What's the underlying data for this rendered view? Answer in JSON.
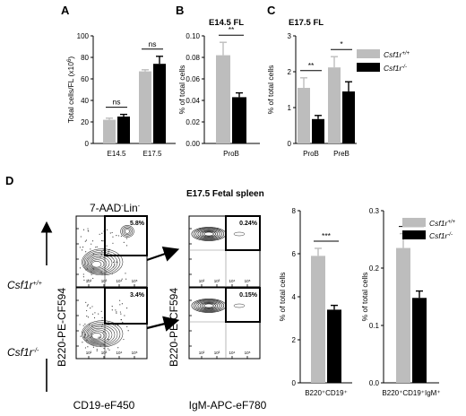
{
  "panel_letters": {
    "a": "A",
    "b": "B",
    "c": "C",
    "d": "D"
  },
  "colors": {
    "wt": "#bdbdbd",
    "ko": "#000000"
  },
  "legend": {
    "wt": "Csf1r",
    "wt_sup": "+/+",
    "ko": "Csf1r",
    "ko_sup": "-/-"
  },
  "chart_data": [
    {
      "type": "bar",
      "panel": "A",
      "title": "",
      "ylabel": "Total cells/FL (x10",
      "ylabel_sup": "6",
      "ylabel_end": ")",
      "ylim": [
        0,
        100
      ],
      "yticks": [
        "0",
        "20",
        "40",
        "60",
        "80",
        "100"
      ],
      "categories": [
        "E14.5",
        "E17.5"
      ],
      "series": [
        {
          "key": "wt",
          "values": [
            22,
            67
          ],
          "errors": [
            1.5,
            1.5
          ]
        },
        {
          "key": "ko",
          "values": [
            25,
            74
          ],
          "errors": [
            2,
            7
          ]
        }
      ],
      "annotations": [
        "ns",
        "ns"
      ]
    },
    {
      "type": "bar",
      "panel": "B",
      "title": "E14.5 FL",
      "ylabel": "% of total cells",
      "ylim": [
        0,
        0.1
      ],
      "yticks": [
        "0.00",
        "0.02",
        "0.04",
        "0.06",
        "0.08",
        "0.10"
      ],
      "categories": [
        "ProB"
      ],
      "series": [
        {
          "key": "wt",
          "values": [
            0.082
          ],
          "errors": [
            0.012
          ]
        },
        {
          "key": "ko",
          "values": [
            0.043
          ],
          "errors": [
            0.004
          ]
        }
      ],
      "annotations": [
        "**"
      ]
    },
    {
      "type": "bar",
      "panel": "C",
      "title": "E17.5 FL",
      "ylabel": "% of total cells",
      "ylim": [
        0,
        3
      ],
      "yticks": [
        "0",
        "1",
        "2",
        "3"
      ],
      "categories": [
        "ProB",
        "PreB"
      ],
      "series": [
        {
          "key": "wt",
          "values": [
            1.55,
            2.12
          ],
          "errors": [
            0.28,
            0.3
          ]
        },
        {
          "key": "ko",
          "values": [
            0.68,
            1.45
          ],
          "errors": [
            0.1,
            0.27
          ]
        }
      ],
      "annotations": [
        "**",
        "*"
      ]
    },
    {
      "type": "bar",
      "panel": "D1",
      "title": "",
      "ylabel": "% of total cells",
      "ylim": [
        0,
        8
      ],
      "yticks": [
        "0",
        "2",
        "4",
        "6",
        "8"
      ],
      "categories": [
        "B220⁺CD19⁺"
      ],
      "series": [
        {
          "key": "wt",
          "values": [
            5.9
          ],
          "errors": [
            0.35
          ]
        },
        {
          "key": "ko",
          "values": [
            3.4
          ],
          "errors": [
            0.2
          ]
        }
      ],
      "annotations": [
        "***"
      ]
    },
    {
      "type": "bar",
      "panel": "D2",
      "title": "",
      "ylabel": "% of total cells",
      "ylim": [
        0,
        0.3
      ],
      "yticks": [
        "0.0",
        "0.1",
        "0.2",
        "0.3"
      ],
      "categories": [
        "B220⁺CD19⁺IgM⁺"
      ],
      "series": [
        {
          "key": "wt",
          "values": [
            0.235
          ],
          "errors": [
            0.025
          ]
        },
        {
          "key": "ko",
          "values": [
            0.148
          ],
          "errors": [
            0.012
          ]
        }
      ],
      "annotations": [
        "**"
      ]
    }
  ],
  "flow": {
    "title": "E17.5 Fetal spleen",
    "gate_title": "7-AAD",
    "gate_title_sup": "-",
    "gate_title_end": "Lin",
    "gate_title_end_sup": "-",
    "row_labels": [
      {
        "text": "Csf1r",
        "sup": "+/+"
      },
      {
        "text": "Csf1r",
        "sup": "-/-"
      }
    ],
    "left_y_label": "B220-PE-CF594",
    "right_y_label": "B220-PE-CF594",
    "left_x_label": "CD19-eF450",
    "right_x_label": "IgM-APC-eF780",
    "left_gate_pcts": [
      "5.8%",
      "3.4%"
    ],
    "right_gate_pcts": [
      "0.24%",
      "0.15%"
    ],
    "axis_ticks": [
      "10²",
      "10³",
      "10⁴",
      "10⁵"
    ]
  }
}
